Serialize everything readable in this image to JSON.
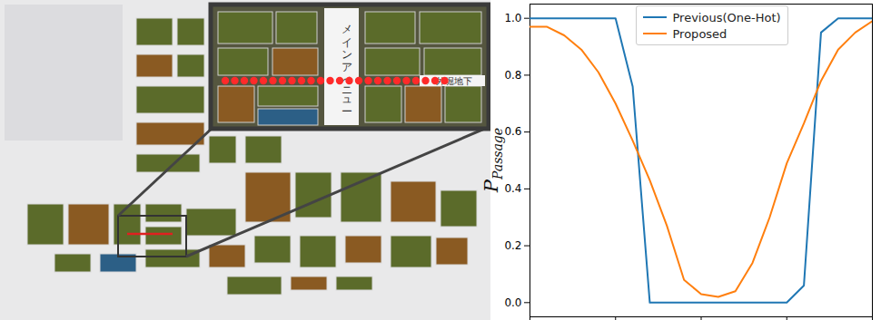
{
  "chart_data": {
    "type": "line",
    "ylabel": "P",
    "ylabel_subscript": "Passage",
    "x": [
      0,
      1,
      2,
      3,
      4,
      5,
      6,
      7,
      8,
      9,
      10,
      11,
      12,
      13,
      14,
      15,
      16,
      17,
      18,
      19,
      20
    ],
    "series": [
      {
        "name": "Previous(One-Hot)",
        "color": "#1f77b4",
        "values": [
          1.0,
          1.0,
          1.0,
          1.0,
          1.0,
          1.0,
          0.76,
          0.0,
          0.0,
          0.0,
          0.0,
          0.0,
          0.0,
          0.0,
          0.0,
          0.0,
          0.06,
          0.95,
          1.0,
          1.0,
          1.0
        ]
      },
      {
        "name": "Proposed",
        "color": "#ff7f0e",
        "values": [
          0.97,
          0.97,
          0.94,
          0.89,
          0.81,
          0.7,
          0.57,
          0.43,
          0.27,
          0.08,
          0.03,
          0.02,
          0.04,
          0.14,
          0.3,
          0.49,
          0.63,
          0.78,
          0.89,
          0.95,
          0.99
        ]
      }
    ],
    "xlim": [
      0,
      20
    ],
    "xticks": [
      0,
      5,
      10,
      15,
      20
    ],
    "ylim": [
      -0.05,
      1.05
    ],
    "yticks": [
      {
        "value": 0,
        "label": "0.0"
      },
      {
        "value": 0.2,
        "label": "0.2"
      },
      {
        "value": 0.4,
        "label": "0.4"
      },
      {
        "value": 0.6,
        "label": "0.6"
      },
      {
        "value": 0.8,
        "label": "0.8"
      },
      {
        "value": 1.0,
        "label": "1.0"
      }
    ],
    "tick_labels": "y",
    "legend": "upper center",
    "grid": false
  },
  "map": {
    "inset_labels": [
      "メインアベニュー",
      "外堀地下"
    ]
  }
}
